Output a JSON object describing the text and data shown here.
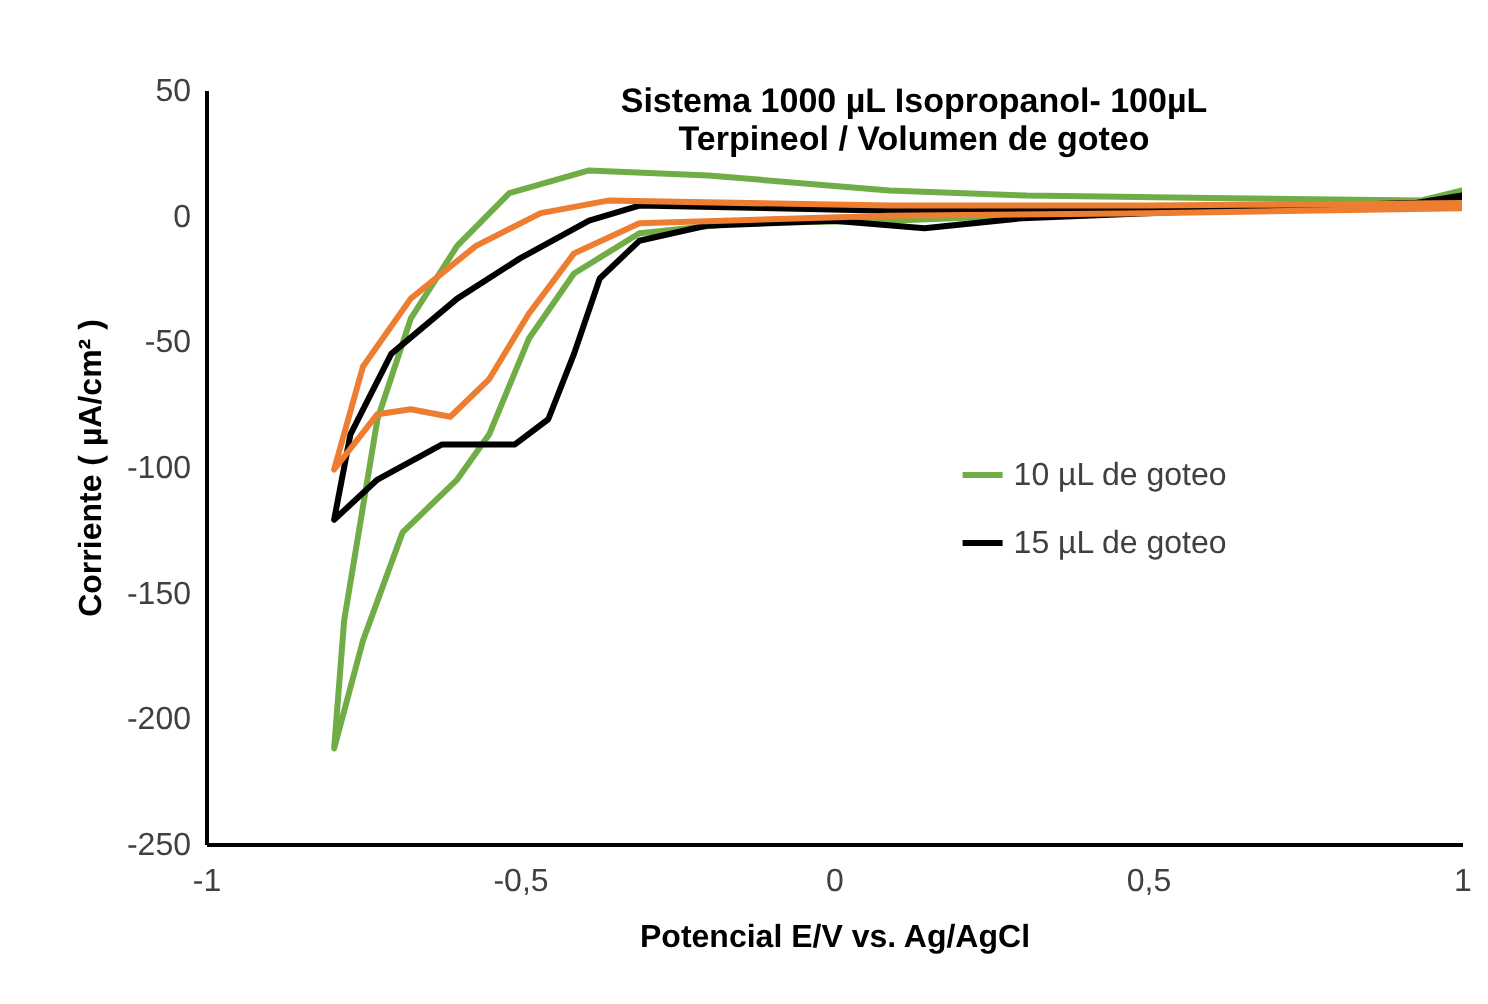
{
  "chart_data": {
    "type": "line",
    "title": "Sistema 1000 µL Isopropanol- 100µL Terpineol / Volumen de goteo",
    "xlabel": "Potencial  E/V vs. Ag/AgCl",
    "ylabel": "Corriente ( µA/cm² )",
    "xlim": [
      -1,
      1
    ],
    "xticks": [
      -1,
      {
        "value": -0.5,
        "label": "-0,5"
      },
      0,
      {
        "value": 0.5,
        "label": "0,5"
      },
      1
    ],
    "ylim": [
      -250,
      50
    ],
    "yticks": [
      -250,
      -200,
      -150,
      -100,
      -50,
      0,
      50
    ],
    "grid": false,
    "legend": "right",
    "line_style": "solid",
    "series": [
      {
        "name": "10 µL de goteo",
        "color": "#70ad47",
        "x": [
          1.0,
          0.9,
          0.5,
          0.088,
          -0.154,
          -0.31,
          -0.414,
          -0.486,
          -0.549,
          -0.6,
          -0.687,
          -0.75,
          -0.796,
          -0.78,
          -0.727,
          -0.674,
          -0.6,
          -0.517,
          -0.39,
          -0.2,
          0.088,
          0.307,
          0.6,
          0.934,
          1.0
        ],
        "values": [
          8,
          4,
          2,
          -2,
          -3,
          -7,
          -23,
          -49,
          -87,
          -105,
          -126,
          -169,
          -212,
          -161,
          -81,
          -41,
          -12,
          9,
          18,
          16,
          10,
          8,
          7,
          6,
          10
        ]
      },
      {
        "name": "15 µL de goteo",
        "color": "#000000",
        "x": [
          1.0,
          0.6,
          0.3,
          0.144,
          0.0,
          -0.204,
          -0.31,
          -0.373,
          -0.414,
          -0.455,
          -0.508,
          -0.624,
          -0.727,
          -0.796,
          -0.77,
          -0.705,
          -0.6,
          -0.5,
          -0.39,
          -0.31,
          0.088,
          0.5,
          0.9,
          1.0
        ],
        "values": [
          6,
          2,
          -1,
          -5,
          -2,
          -4,
          -10,
          -25,
          -55,
          -81,
          -91,
          -91,
          -105,
          -121,
          -87,
          -55,
          -33,
          -17,
          -2,
          4,
          2,
          3,
          4,
          8
        ]
      },
      {
        "color": "#ed7d31",
        "x": [
          1.0,
          0.5,
          0.088,
          -0.31,
          -0.414,
          -0.486,
          -0.549,
          -0.611,
          -0.674,
          -0.727,
          -0.796,
          -0.75,
          -0.674,
          -0.57,
          -0.467,
          -0.36,
          0.088,
          0.5,
          1.0
        ],
        "values": [
          3,
          1,
          0,
          -3,
          -15,
          -39,
          -65,
          -80,
          -77,
          -79,
          -101,
          -60,
          -33,
          -12,
          1,
          6,
          4,
          4,
          5
        ]
      }
    ]
  }
}
